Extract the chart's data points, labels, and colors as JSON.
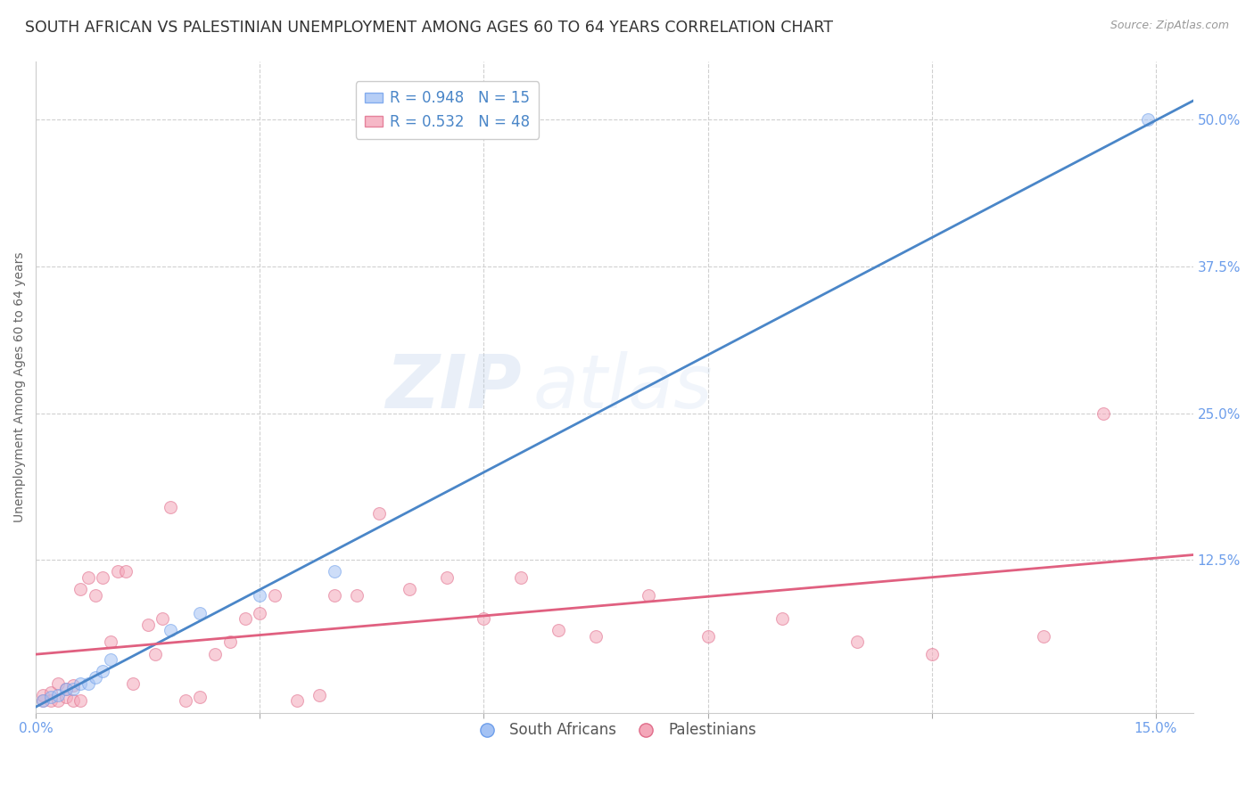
{
  "title": "SOUTH AFRICAN VS PALESTINIAN UNEMPLOYMENT AMONG AGES 60 TO 64 YEARS CORRELATION CHART",
  "source": "Source: ZipAtlas.com",
  "ylabel": "Unemployment Among Ages 60 to 64 years",
  "xlim": [
    0.0,
    0.155
  ],
  "ylim": [
    -0.005,
    0.55
  ],
  "xticks": [
    0.0,
    0.03,
    0.06,
    0.09,
    0.12,
    0.15
  ],
  "xticklabels": [
    "0.0%",
    "",
    "",
    "",
    "",
    "15.0%"
  ],
  "yticks_right": [
    0.125,
    0.25,
    0.375,
    0.5
  ],
  "yticklabels_right": [
    "12.5%",
    "25.0%",
    "37.5%",
    "50.0%"
  ],
  "grid_color": "#d0d0d0",
  "background_color": "#ffffff",
  "watermark_text": "ZIP",
  "watermark_text2": "atlas",
  "blue_color": "#a4c2f4",
  "pink_color": "#f4a7b9",
  "blue_edge_color": "#6d9eeb",
  "pink_edge_color": "#e06c8a",
  "blue_line_color": "#4a86c8",
  "pink_line_color": "#e06080",
  "tick_color": "#6d9eeb",
  "blue_R": 0.948,
  "blue_N": 15,
  "pink_R": 0.532,
  "pink_N": 48,
  "south_africans_x": [
    0.001,
    0.002,
    0.003,
    0.004,
    0.005,
    0.006,
    0.007,
    0.008,
    0.009,
    0.01,
    0.018,
    0.022,
    0.03,
    0.04,
    0.149
  ],
  "south_africans_y": [
    0.005,
    0.008,
    0.01,
    0.015,
    0.015,
    0.02,
    0.02,
    0.025,
    0.03,
    0.04,
    0.065,
    0.08,
    0.095,
    0.115,
    0.5
  ],
  "palestinians_x": [
    0.001,
    0.001,
    0.002,
    0.002,
    0.003,
    0.003,
    0.004,
    0.004,
    0.005,
    0.005,
    0.006,
    0.006,
    0.007,
    0.008,
    0.009,
    0.01,
    0.011,
    0.012,
    0.013,
    0.015,
    0.016,
    0.017,
    0.018,
    0.02,
    0.022,
    0.024,
    0.026,
    0.028,
    0.03,
    0.032,
    0.035,
    0.038,
    0.04,
    0.043,
    0.046,
    0.05,
    0.055,
    0.06,
    0.065,
    0.07,
    0.075,
    0.082,
    0.09,
    0.1,
    0.11,
    0.12,
    0.135,
    0.143
  ],
  "palestinians_y": [
    0.005,
    0.01,
    0.005,
    0.012,
    0.005,
    0.02,
    0.008,
    0.015,
    0.005,
    0.018,
    0.005,
    0.1,
    0.11,
    0.095,
    0.11,
    0.055,
    0.115,
    0.115,
    0.02,
    0.07,
    0.045,
    0.075,
    0.17,
    0.005,
    0.008,
    0.045,
    0.055,
    0.075,
    0.08,
    0.095,
    0.005,
    0.01,
    0.095,
    0.095,
    0.165,
    0.1,
    0.11,
    0.075,
    0.11,
    0.065,
    0.06,
    0.095,
    0.06,
    0.075,
    0.055,
    0.045,
    0.06,
    0.25
  ],
  "title_fontsize": 12.5,
  "axis_label_fontsize": 10,
  "tick_fontsize": 11,
  "legend_fontsize": 12,
  "marker_size": 100,
  "marker_alpha": 0.55,
  "line_width": 2.0
}
